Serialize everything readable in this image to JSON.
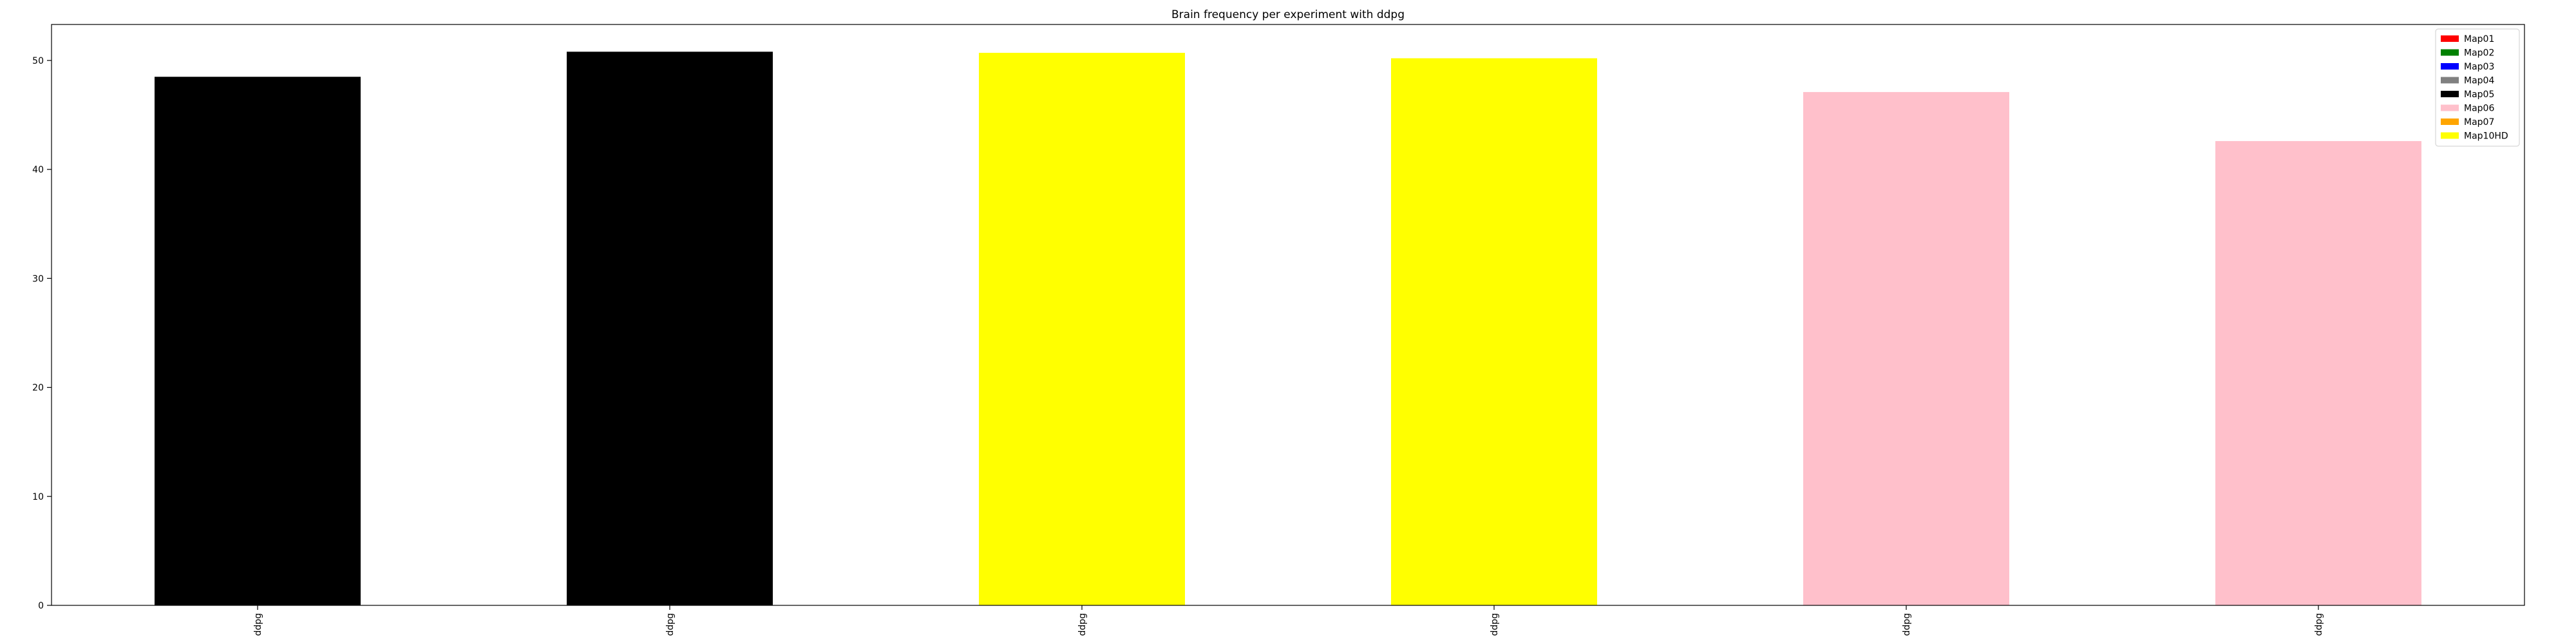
{
  "chart_data": {
    "type": "bar",
    "title": "Brain frequency per experiment with ddpg",
    "xlabel": "",
    "ylabel": "",
    "categories": [
      "ddpg",
      "ddpg",
      "ddpg",
      "ddpg",
      "ddpg",
      "ddpg"
    ],
    "values": [
      48.5,
      50.8,
      50.7,
      50.2,
      47.1,
      42.6
    ],
    "bar_colors": [
      "#000000",
      "#000000",
      "#ffff00",
      "#ffff00",
      "#ffc0cb",
      "#ffc0cb"
    ],
    "ylim": [
      0,
      53.3
    ],
    "yticks": [
      0,
      10,
      20,
      30,
      40,
      50
    ],
    "grid": false,
    "legend": {
      "placement": "top-right",
      "entries": [
        {
          "name": "Map01",
          "color": "#ff0000"
        },
        {
          "name": "Map02",
          "color": "#008000"
        },
        {
          "name": "Map03",
          "color": "#0000ff"
        },
        {
          "name": "Map04",
          "color": "#808080"
        },
        {
          "name": "Map05",
          "color": "#000000"
        },
        {
          "name": "Map06",
          "color": "#ffc0cb"
        },
        {
          "name": "Map07",
          "color": "#ffa500"
        },
        {
          "name": "Map10HD",
          "color": "#ffff00"
        }
      ]
    }
  }
}
